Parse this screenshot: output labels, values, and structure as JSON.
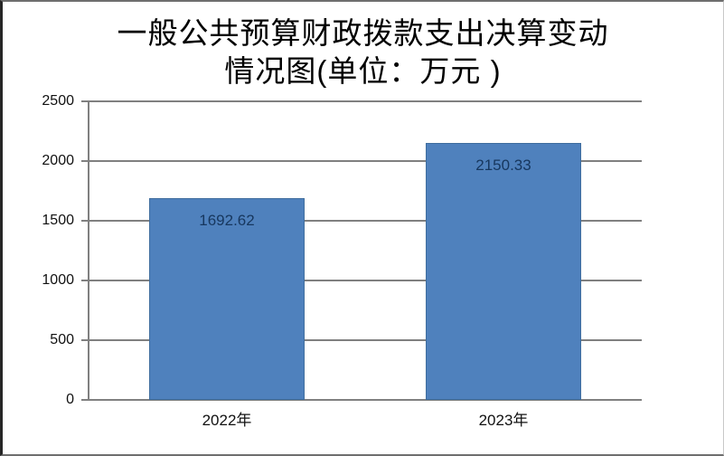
{
  "title": {
    "line1": "一般公共预算财政拨款支出决算变动",
    "line2": "情况图(单位：万元 )"
  },
  "chart_data": {
    "type": "bar",
    "title": "一般公共预算财政拨款支出决算变动情况图(单位：万元 )",
    "categories": [
      "2022年",
      "2023年"
    ],
    "values": [
      1692.62,
      2150.33
    ],
    "data_labels": [
      "1692.62",
      "2150.33"
    ],
    "xlabel": "",
    "ylabel": "",
    "ylim": [
      0,
      2500
    ],
    "yticks": [
      0,
      500,
      1000,
      1500,
      2000,
      2500
    ],
    "grid": true,
    "legend": false,
    "colors": {
      "bar_fill": "#4F81BD",
      "bar_border": "#3F6D9E",
      "axis_gridline": "#808080",
      "value_label": "#17375E",
      "tick_label": "#111111",
      "title_text": "#000000"
    }
  }
}
